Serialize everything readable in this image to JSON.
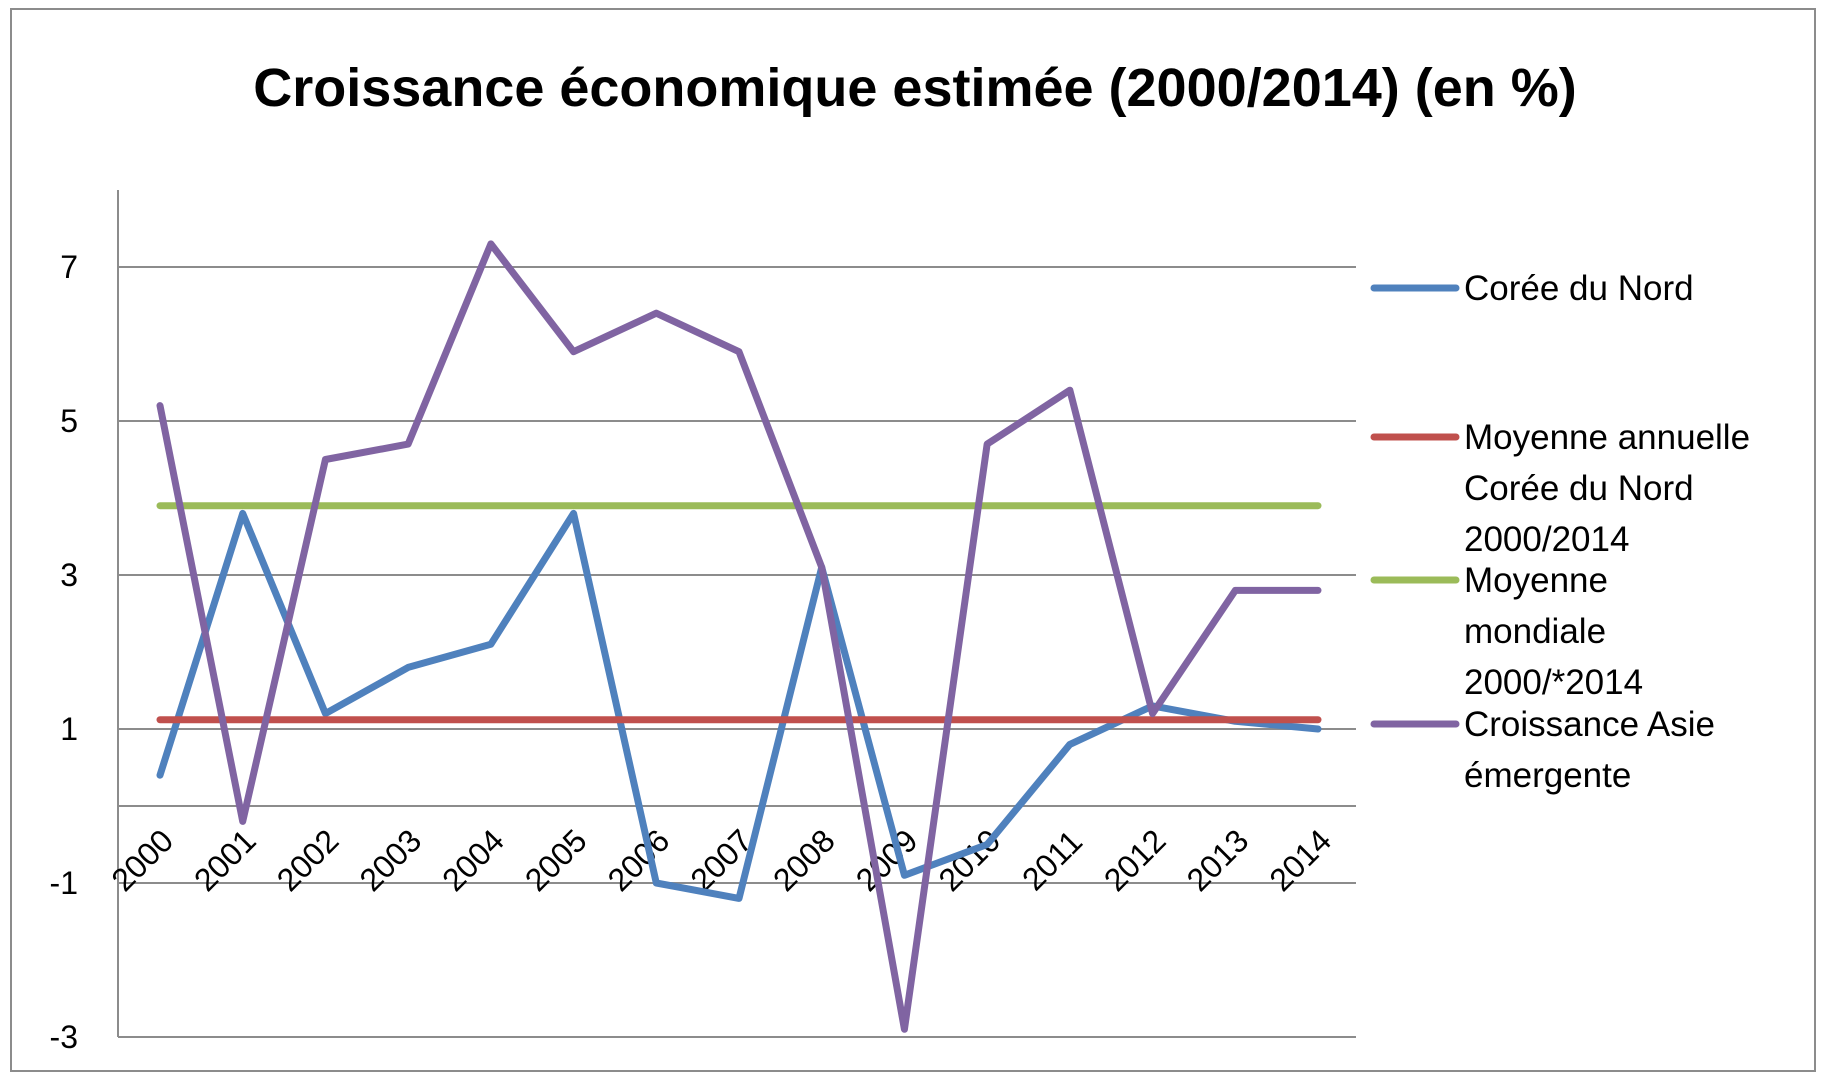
{
  "chart_data": {
    "type": "line",
    "title": "Croissance économique estimée (2000/2014) (en %)",
    "xlabel": "",
    "ylabel": "",
    "categories": [
      "2000",
      "2001",
      "2002",
      "2003",
      "2004",
      "2005",
      "2006",
      "2007",
      "2008",
      "2009",
      "2010",
      "2011",
      "2012",
      "2013",
      "2014"
    ],
    "ylim": [
      -3,
      8
    ],
    "yticks": [
      -3,
      -1,
      1,
      3,
      5,
      7
    ],
    "ytick_labels": [
      "-3",
      "-1",
      "1",
      "3",
      "5",
      "7"
    ],
    "grid": true,
    "legend_position": "right",
    "series": [
      {
        "name": "Corée du Nord",
        "color": "#4f81bd",
        "values": [
          0.4,
          3.8,
          1.2,
          1.8,
          2.1,
          3.8,
          -1.0,
          -1.2,
          3.1,
          -0.9,
          -0.5,
          0.8,
          1.3,
          1.1,
          1.0
        ]
      },
      {
        "name": "Moyenne annuelle Corée du Nord 2000/2014",
        "legend_lines": [
          "Moyenne annuelle",
          "Corée du Nord",
          "2000/2014"
        ],
        "color": "#c0504d",
        "values": [
          1.12,
          1.12,
          1.12,
          1.12,
          1.12,
          1.12,
          1.12,
          1.12,
          1.12,
          1.12,
          1.12,
          1.12,
          1.12,
          1.12,
          1.12
        ]
      },
      {
        "name": "Moyenne mondiale 2000/*2014",
        "legend_lines": [
          "Moyenne",
          "mondiale",
          "2000/*2014"
        ],
        "color": "#9bbb59",
        "values": [
          3.9,
          3.9,
          3.9,
          3.9,
          3.9,
          3.9,
          3.9,
          3.9,
          3.9,
          3.9,
          3.9,
          3.9,
          3.9,
          3.9,
          3.9
        ]
      },
      {
        "name": "Croissance Asie émergente",
        "legend_lines": [
          "Croissance Asie",
          "émergente"
        ],
        "color": "#8064a2",
        "values": [
          5.2,
          -0.2,
          4.5,
          4.7,
          7.3,
          5.9,
          6.4,
          5.9,
          3.1,
          -2.9,
          4.7,
          5.4,
          1.2,
          2.8,
          2.8
        ]
      }
    ]
  }
}
